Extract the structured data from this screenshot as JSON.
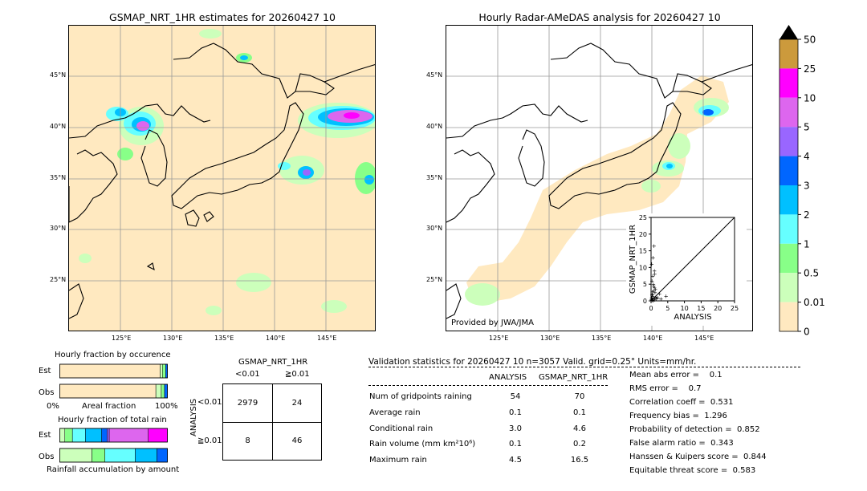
{
  "map_left": {
    "title": "GSMAP_NRT_1HR estimates for 20260427 10",
    "lat_labels": [
      "45°N",
      "40°N",
      "35°N",
      "30°N",
      "25°N"
    ],
    "lon_labels": [
      "125°E",
      "130°E",
      "135°E",
      "140°E",
      "145°E"
    ]
  },
  "map_right": {
    "title": "Hourly Radar-AMeDAS analysis for 20260427 10",
    "lat_labels": [
      "45°N",
      "40°N",
      "35°N",
      "30°N",
      "25°N"
    ],
    "lon_labels": [
      "125°E",
      "130°E",
      "135°E",
      "140°E",
      "145°E"
    ],
    "credit": "Provided by JWA/JMA"
  },
  "inset": {
    "ylabel": "GSMAP_NRT_1HR",
    "xlabel": "ANALYSIS",
    "ticks": [
      "0",
      "5",
      "10",
      "15",
      "20",
      "25"
    ]
  },
  "colorbar": {
    "labels": [
      "50",
      "25",
      "10",
      "5",
      "4",
      "3",
      "2",
      "1",
      "0.5",
      "0.01",
      "0"
    ],
    "colors": [
      "#cc9a3c",
      "#ff00ff",
      "#dd66ee",
      "#9966ff",
      "#0066ff",
      "#00c0ff",
      "#66ffff",
      "#88ff88",
      "#ccffbb",
      "#ffe9c0"
    ]
  },
  "occurrence": {
    "title": "Hourly fraction by occurence",
    "row_est": "Est",
    "row_obs": "Obs",
    "axis_left": "0%",
    "axis_mid": "Areal fraction",
    "axis_right": "100%"
  },
  "total_rain": {
    "title": "Hourly fraction of total rain",
    "row_est": "Est",
    "row_obs": "Obs",
    "caption": "Rainfall accumulation by amount"
  },
  "contingency": {
    "title": "GSMAP_NRT_1HR",
    "col_lt": "<0.01",
    "col_ge": "≧0.01",
    "row_axis": "ANALYSIS",
    "row_lt": "<0.01",
    "row_ge": "≧0.01",
    "cells": [
      "2979",
      "24",
      "8",
      "46"
    ]
  },
  "validation": {
    "header": "Validation statistics for 20260427 10  n=3057 Valid. grid=0.25° Units=mm/hr.",
    "col_analysis": "ANALYSIS",
    "col_gsmap": "GSMAP_NRT_1HR",
    "rows": [
      {
        "label": "Num of gridpoints raining",
        "a": "54",
        "g": "70"
      },
      {
        "label": "Average rain",
        "a": "0.1",
        "g": "0.1"
      },
      {
        "label": "Conditional rain",
        "a": "3.0",
        "g": "4.6"
      },
      {
        "label": "Rain volume (mm km²10⁶)",
        "a": "0.1",
        "g": "0.2"
      },
      {
        "label": "Maximum rain",
        "a": "4.5",
        "g": "16.5"
      }
    ],
    "scores": [
      "Mean abs error =    0.1",
      "RMS error =    0.7",
      "Correlation coeff =  0.531",
      "Frequency bias =  1.296",
      "Probability of detection =  0.852",
      "False alarm ratio =  0.343",
      "Hanssen & Kuipers score =  0.844",
      "Equitable threat score =  0.583"
    ]
  },
  "chart_data": [
    {
      "type": "scatter",
      "xlabel": "ANALYSIS",
      "ylabel": "GSMAP_NRT_1HR",
      "xlim": [
        0,
        25
      ],
      "ylim": [
        0,
        25
      ],
      "x": [
        0.1,
        0.2,
        0.3,
        0.4,
        0.5,
        0.6,
        0.8,
        1.0,
        1.2,
        1.5,
        0.3,
        0.5,
        0.7,
        1.0,
        1.3,
        0.2,
        0.6,
        0.9,
        1.1,
        2.0,
        2.5,
        3.0,
        0.4,
        0.8,
        1.2,
        0.5,
        1.0,
        0.3,
        0.7,
        1.6,
        4.5
      ],
      "y": [
        0.5,
        1.0,
        0.3,
        2.0,
        1.5,
        0.8,
        3.0,
        4.0,
        2.5,
        1.2,
        6.0,
        7.5,
        5.0,
        9.0,
        3.5,
        11.0,
        13.0,
        16.5,
        8.0,
        1.0,
        2.2,
        0.6,
        2.8,
        4.5,
        0.9,
        0.2,
        0.4,
        1.8,
        0.1,
        0.7,
        1.5
      ]
    },
    {
      "type": "table",
      "title": "GSMAP_NRT_1HR",
      "columns": [
        "<0.01",
        "≧0.01"
      ],
      "rows": [
        "<0.01",
        "≧0.01"
      ],
      "values": [
        [
          2979,
          24
        ],
        [
          8,
          46
        ]
      ]
    },
    {
      "type": "bar",
      "title": "Hourly fraction by occurence",
      "categories": [
        "Est",
        "Obs"
      ],
      "series": [
        {
          "values": [
            0.93,
            0.89
          ]
        },
        {
          "values": [
            0.02,
            0.05
          ]
        },
        {
          "values": [
            0.03,
            0.03
          ]
        },
        {
          "values": [
            0.02,
            0.03
          ]
        }
      ]
    },
    {
      "type": "bar",
      "title": "Hourly fraction of total rain",
      "categories": [
        "Est",
        "Obs"
      ],
      "series": [
        {
          "values": [
            0.05,
            0.3
          ]
        },
        {
          "values": [
            0.07,
            0.12
          ]
        },
        {
          "values": [
            0.12,
            0.28
          ]
        },
        {
          "values": [
            0.15,
            0.2
          ]
        },
        {
          "values": [
            0.05,
            0.1
          ]
        },
        {
          "values": [
            0.02,
            0.0
          ]
        },
        {
          "values": [
            0.36,
            0.0
          ]
        },
        {
          "values": [
            0.18,
            0.0
          ]
        }
      ]
    }
  ]
}
